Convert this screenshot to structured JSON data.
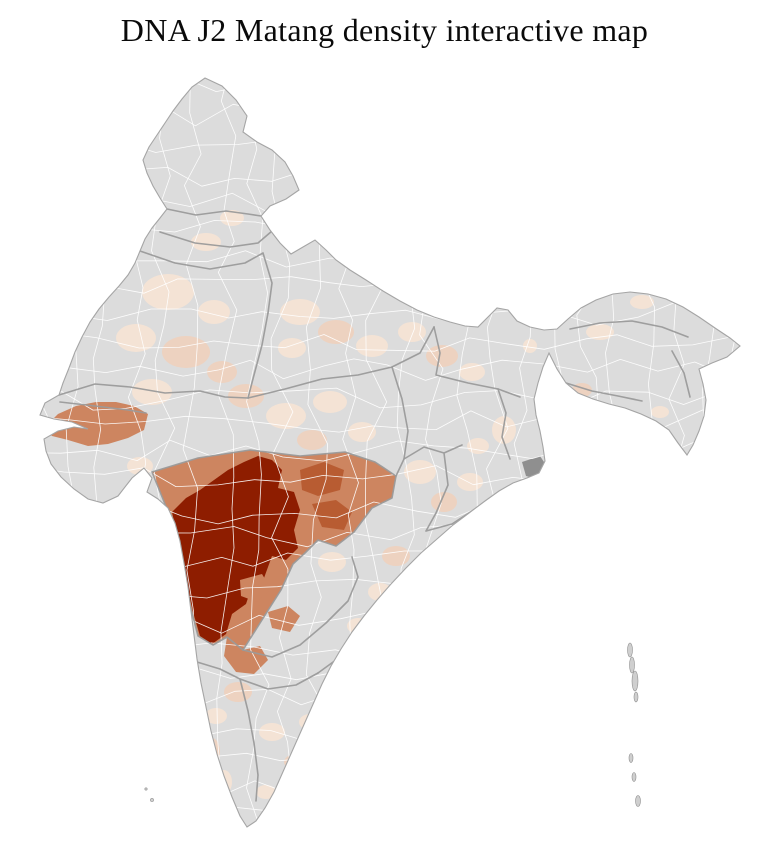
{
  "page": {
    "title": "DNA J2 Matang density interactive map"
  },
  "map": {
    "region": "India",
    "type": "district-level-choropleth",
    "palette": {
      "no-data": "#dcdcdc",
      "density-low": "#f4e3d5",
      "density-low-mid": "#edd2c0",
      "density-mid": "#cd8560",
      "density-high": "#b85c32",
      "density-highest": "#8e1d00",
      "district-border": "#ffffff",
      "state-border": "#9a9a9a",
      "outer-border": "#a5a5a5",
      "masked-area": "#8f8f8f",
      "island": "#cfcfcf",
      "background": "#ffffff"
    }
  }
}
